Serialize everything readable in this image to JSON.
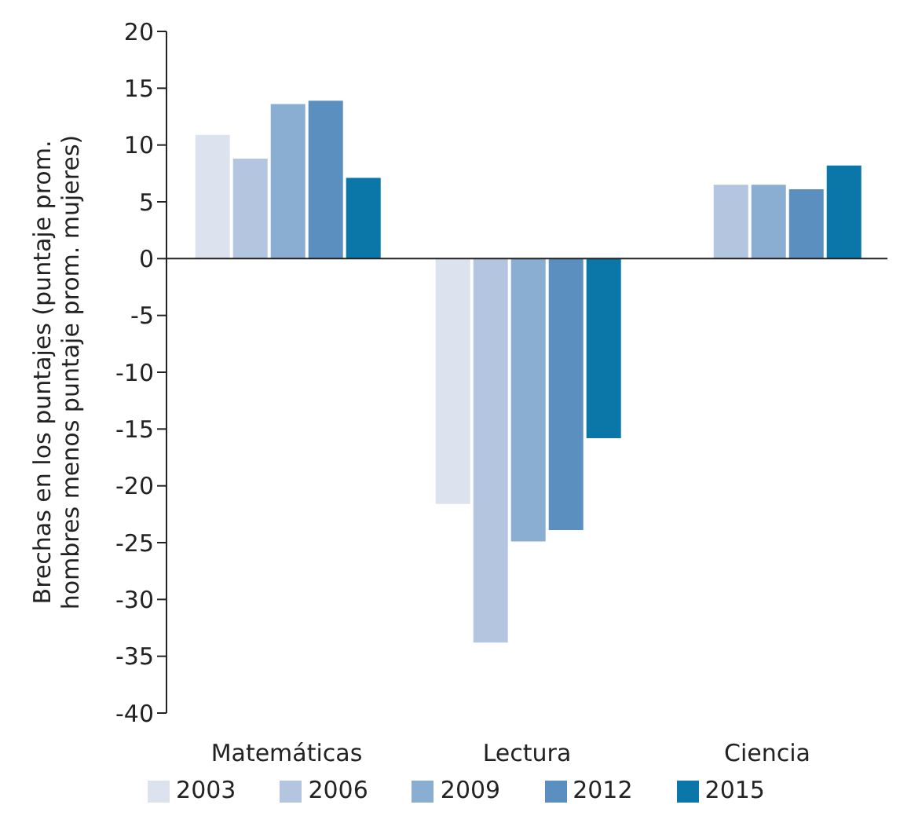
{
  "chart_data": {
    "type": "bar",
    "ylabel": "Brechas en los puntajes (puntaje prom. hombres menos puntaje prom. mujeres)",
    "categories": [
      "Matemáticas",
      "Lectura",
      "Ciencia"
    ],
    "series": [
      {
        "name": "2003",
        "color": "#dce3ef",
        "values": [
          10.9,
          -21.6,
          null
        ]
      },
      {
        "name": "2006",
        "color": "#b4c5df",
        "values": [
          8.8,
          -33.8,
          6.5
        ]
      },
      {
        "name": "2009",
        "color": "#8aaed2",
        "values": [
          13.6,
          -24.9,
          6.5
        ]
      },
      {
        "name": "2012",
        "color": "#5b8fbf",
        "values": [
          13.9,
          -23.9,
          6.1
        ]
      },
      {
        "name": "2015",
        "color": "#0a77a8",
        "values": [
          7.1,
          -15.8,
          8.2
        ]
      }
    ],
    "ylim": [
      -40,
      20
    ],
    "yticks": [
      -40,
      -35,
      -30,
      -25,
      -20,
      -15,
      -10,
      -5,
      0,
      5,
      10,
      15,
      20
    ],
    "legend": "bottom"
  }
}
